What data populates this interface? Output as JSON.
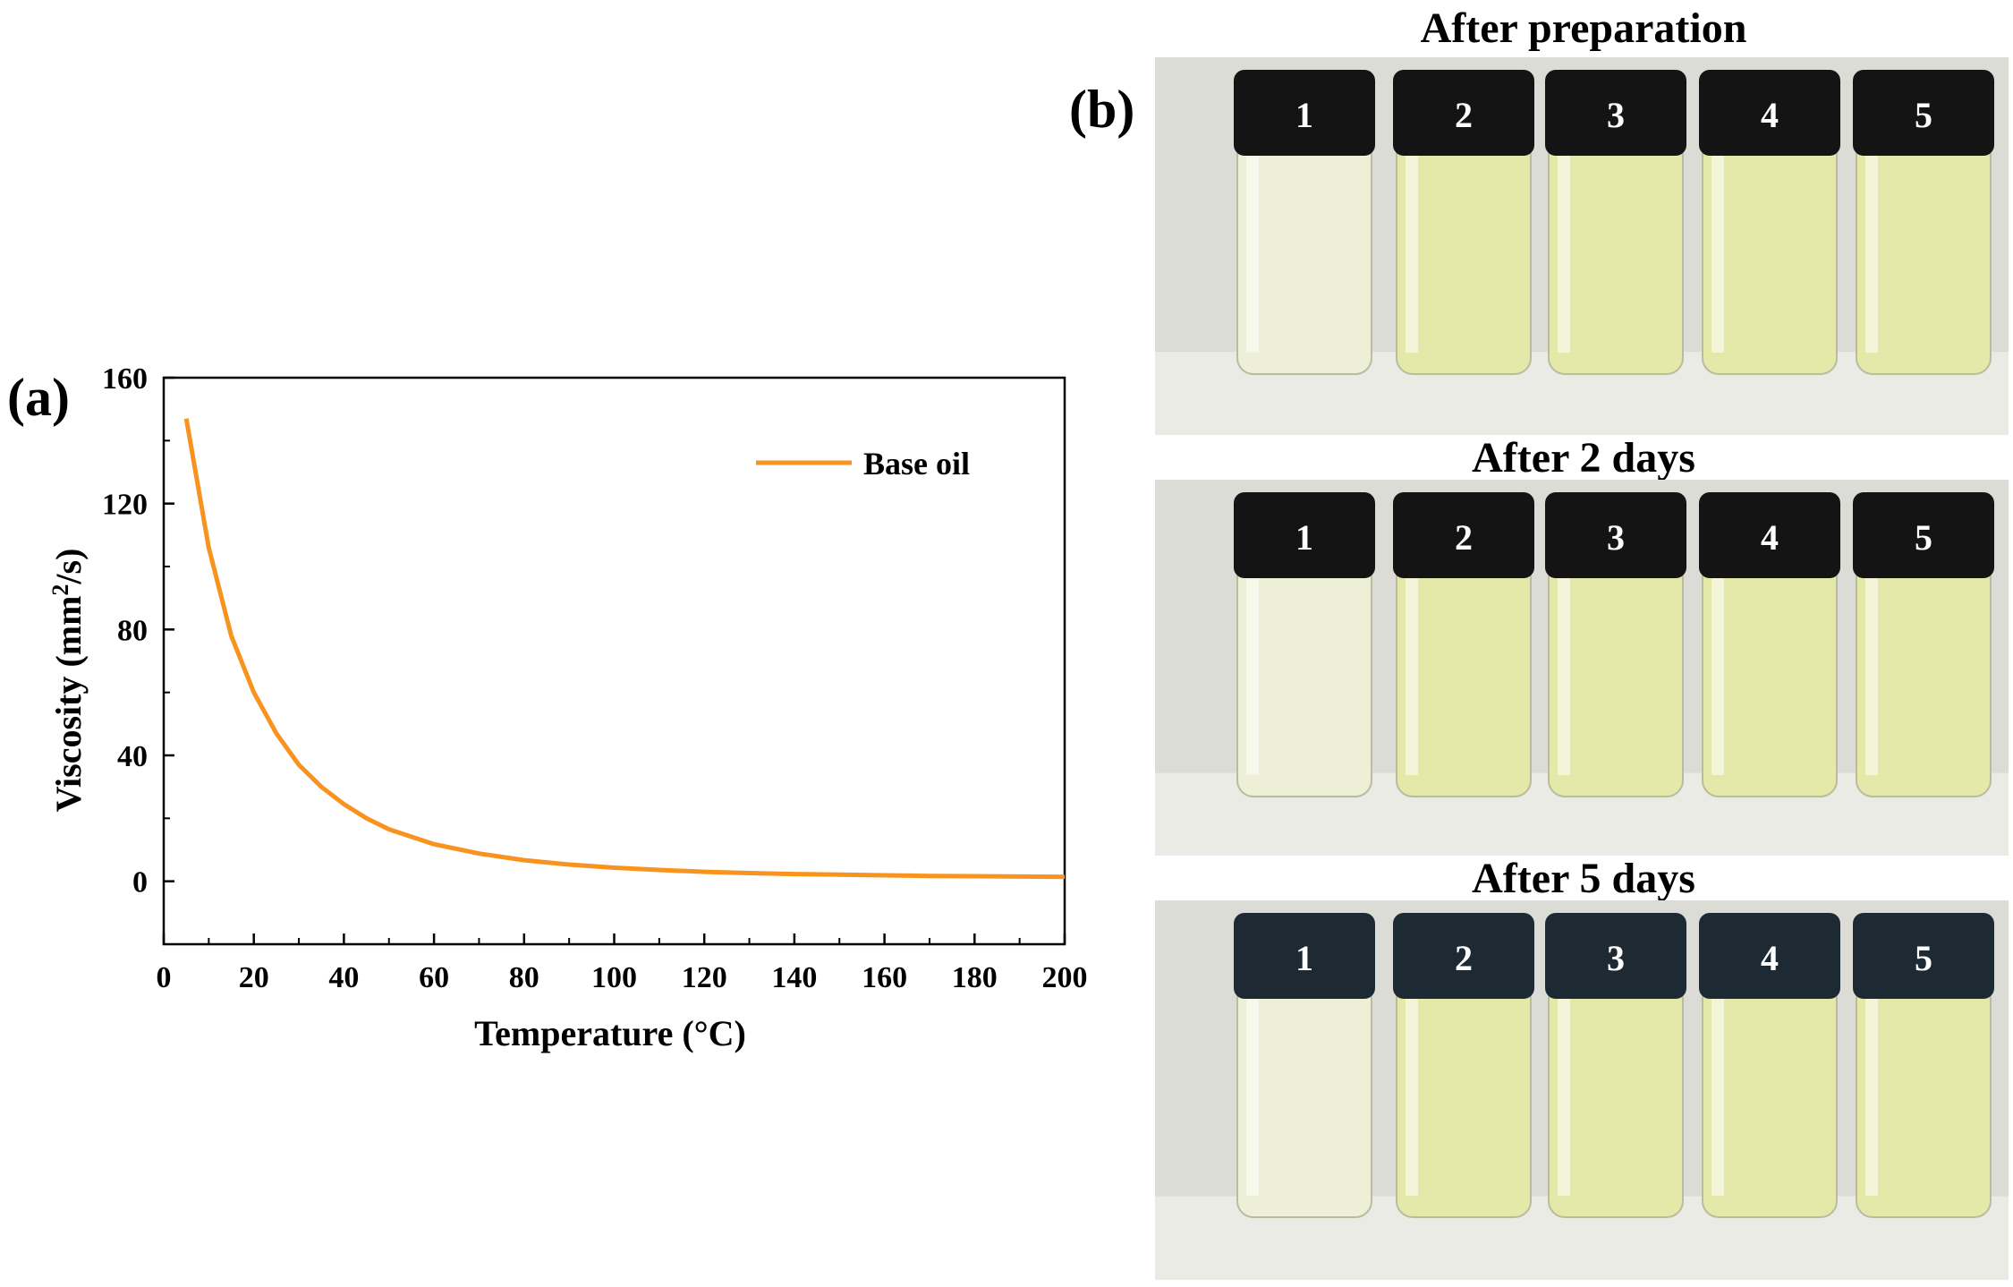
{
  "panel_a_label": "(a)",
  "panel_b_label": "(b)",
  "chart_data": {
    "type": "line",
    "xlabel": "Temperature (°C)",
    "ylabel_main": "Viscosity (mm",
    "ylabel_sup": "2",
    "ylabel_tail": "/s)",
    "xlim": [
      0,
      200
    ],
    "ylim": [
      -20,
      160
    ],
    "xticks": [
      "0",
      "20",
      "40",
      "60",
      "80",
      "100",
      "120",
      "140",
      "160",
      "180",
      "200"
    ],
    "yticks": [
      "0",
      "40",
      "80",
      "120",
      "160"
    ],
    "grid": false,
    "legend_position": "top-right",
    "series": [
      {
        "name": "Base oil",
        "color": "#f7931e",
        "x": [
          5,
          10,
          15,
          20,
          25,
          30,
          35,
          40,
          45,
          50,
          60,
          70,
          80,
          90,
          100,
          110,
          120,
          130,
          140,
          150,
          160,
          170,
          180,
          190,
          200
        ],
        "y": [
          147,
          106,
          78,
          60,
          47,
          37,
          30,
          24.5,
          20,
          16.5,
          11.8,
          8.8,
          6.7,
          5.3,
          4.3,
          3.6,
          3.0,
          2.6,
          2.3,
          2.1,
          1.9,
          1.7,
          1.6,
          1.5,
          1.4
        ]
      }
    ]
  },
  "photos": [
    {
      "title": "After preparation",
      "vials": [
        "1",
        "2",
        "3",
        "4",
        "5"
      ]
    },
    {
      "title": "After 2 days",
      "vials": [
        "1",
        "2",
        "3",
        "4",
        "5"
      ]
    },
    {
      "title": "After 5 days",
      "vials": [
        "1",
        "2",
        "3",
        "4",
        "5"
      ]
    }
  ],
  "vial_colors": {
    "cap": "#141414",
    "cap_blue": "#1e2a33",
    "liquid_clear": "#edefd6",
    "liquid_yellow": "#e4e8a8",
    "background": "#dcdcd6"
  }
}
